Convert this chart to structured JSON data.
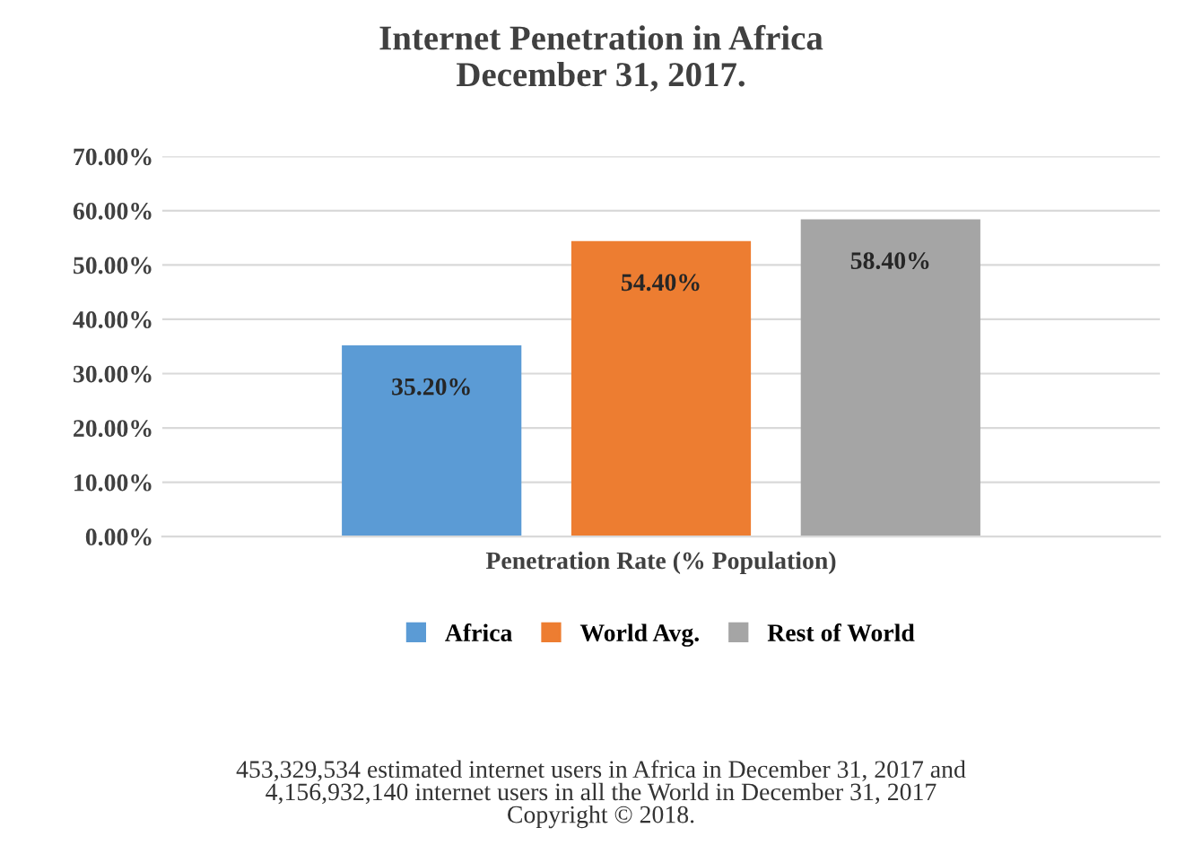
{
  "chart_data": {
    "type": "bar",
    "title": "Internet Penetration in Africa\nDecember 31, 2017.",
    "categories": [
      "Penetration Rate (% Population)"
    ],
    "series": [
      {
        "name": "Africa",
        "color": "#5b9bd5",
        "values": [
          35.2
        ],
        "value_labels": [
          "35.20%"
        ]
      },
      {
        "name": "World Avg.",
        "color": "#ed7d31",
        "values": [
          54.4
        ],
        "value_labels": [
          "54.40%"
        ]
      },
      {
        "name": "Rest of World",
        "color": "#a5a5a5",
        "values": [
          58.4
        ],
        "value_labels": [
          "58.40%"
        ]
      }
    ],
    "ylim": [
      0,
      70
    ],
    "yticks": [
      {
        "value": 0,
        "label": "0.00%"
      },
      {
        "value": 10,
        "label": "10.00%"
      },
      {
        "value": 20,
        "label": "20.00%"
      },
      {
        "value": 30,
        "label": "30.00%"
      },
      {
        "value": 40,
        "label": "40.00%"
      },
      {
        "value": 50,
        "label": "50.00%"
      },
      {
        "value": 60,
        "label": "60.00%"
      },
      {
        "value": 70,
        "label": "70.00%"
      }
    ],
    "grid": "y",
    "legend": "bottom",
    "annotations": [
      "453,329,534 estimated internet users in Africa in December 31, 2017 and\n4,156,932,140 internet users in all the World in December 31, 2017\nCopyright © 2018."
    ]
  }
}
